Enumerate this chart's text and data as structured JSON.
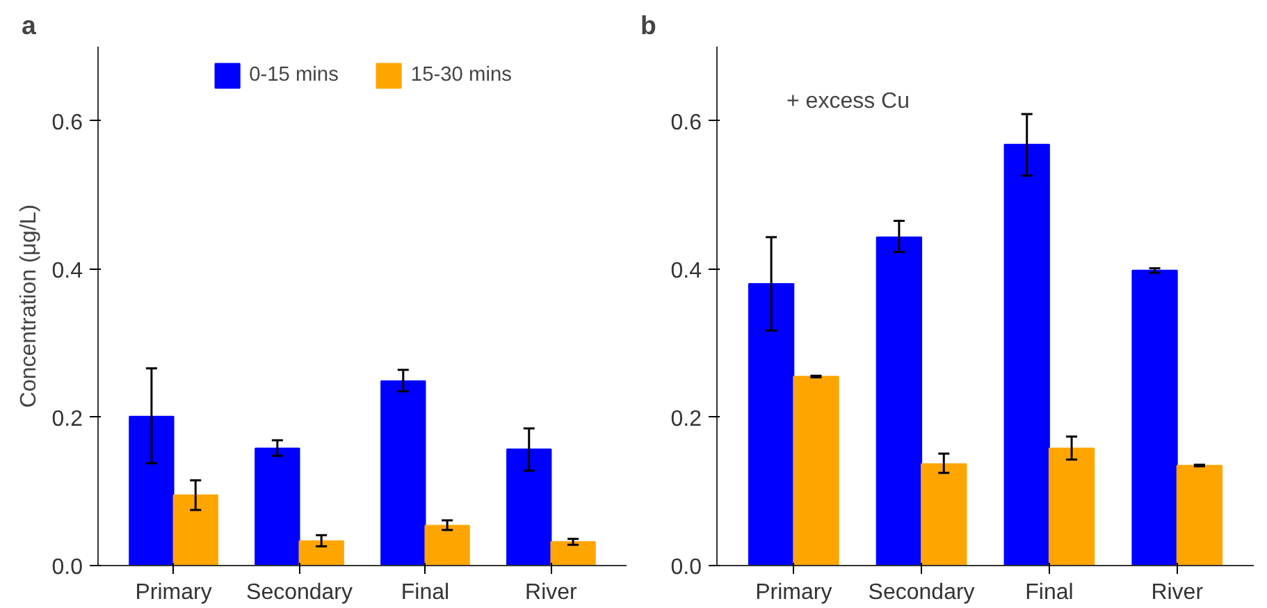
{
  "chart_data": [
    {
      "type": "bar",
      "title": "a",
      "ylabel": "Concentration (μg/L)",
      "categories": [
        "Primary",
        "Secondary",
        "Final",
        "River"
      ],
      "series": [
        {
          "name": "0-15 mins",
          "color": "#0000ff",
          "values": [
            0.201,
            0.158,
            0.249,
            0.157
          ],
          "errors": [
            [
              0.138,
              0.266
            ],
            [
              0.148,
              0.169
            ],
            [
              0.235,
              0.264
            ],
            [
              0.128,
              0.185
            ]
          ]
        },
        {
          "name": "15-30 mins",
          "color": "#ffa500",
          "values": [
            0.095,
            0.033,
            0.054,
            0.032
          ],
          "errors": [
            [
              0.075,
              0.115
            ],
            [
              0.026,
              0.041
            ],
            [
              0.048,
              0.061
            ],
            [
              0.028,
              0.036
            ]
          ]
        }
      ],
      "ylim": [
        0,
        0.7
      ],
      "yticks": [
        {
          "value": 0,
          "label": "0.0"
        },
        0.2,
        0.4,
        0.6
      ],
      "grid": false,
      "legend": "top"
    },
    {
      "type": "bar",
      "title": "b",
      "annotations": [
        "+ excess Cu"
      ],
      "categories": [
        "Primary",
        "Secondary",
        "Final",
        "River"
      ],
      "series": [
        {
          "color": "#0000ff",
          "values": [
            0.38,
            0.443,
            0.568,
            0.398
          ],
          "errors": [
            [
              0.317,
              0.443
            ],
            [
              0.423,
              0.465
            ],
            [
              0.526,
              0.609
            ],
            [
              0.395,
              0.401
            ]
          ]
        },
        {
          "color": "#ffa500",
          "values": [
            0.255,
            0.137,
            0.158,
            0.135
          ],
          "errors": [
            [
              0.254,
              0.256
            ],
            [
              0.125,
              0.151
            ],
            [
              0.143,
              0.174
            ],
            [
              0.134,
              0.136
            ]
          ]
        }
      ],
      "ylim": [
        0,
        0.7
      ],
      "yticks": [
        {
          "value": 0,
          "label": "0.0"
        },
        0.2,
        0.4,
        0.6
      ],
      "grid": false
    }
  ]
}
